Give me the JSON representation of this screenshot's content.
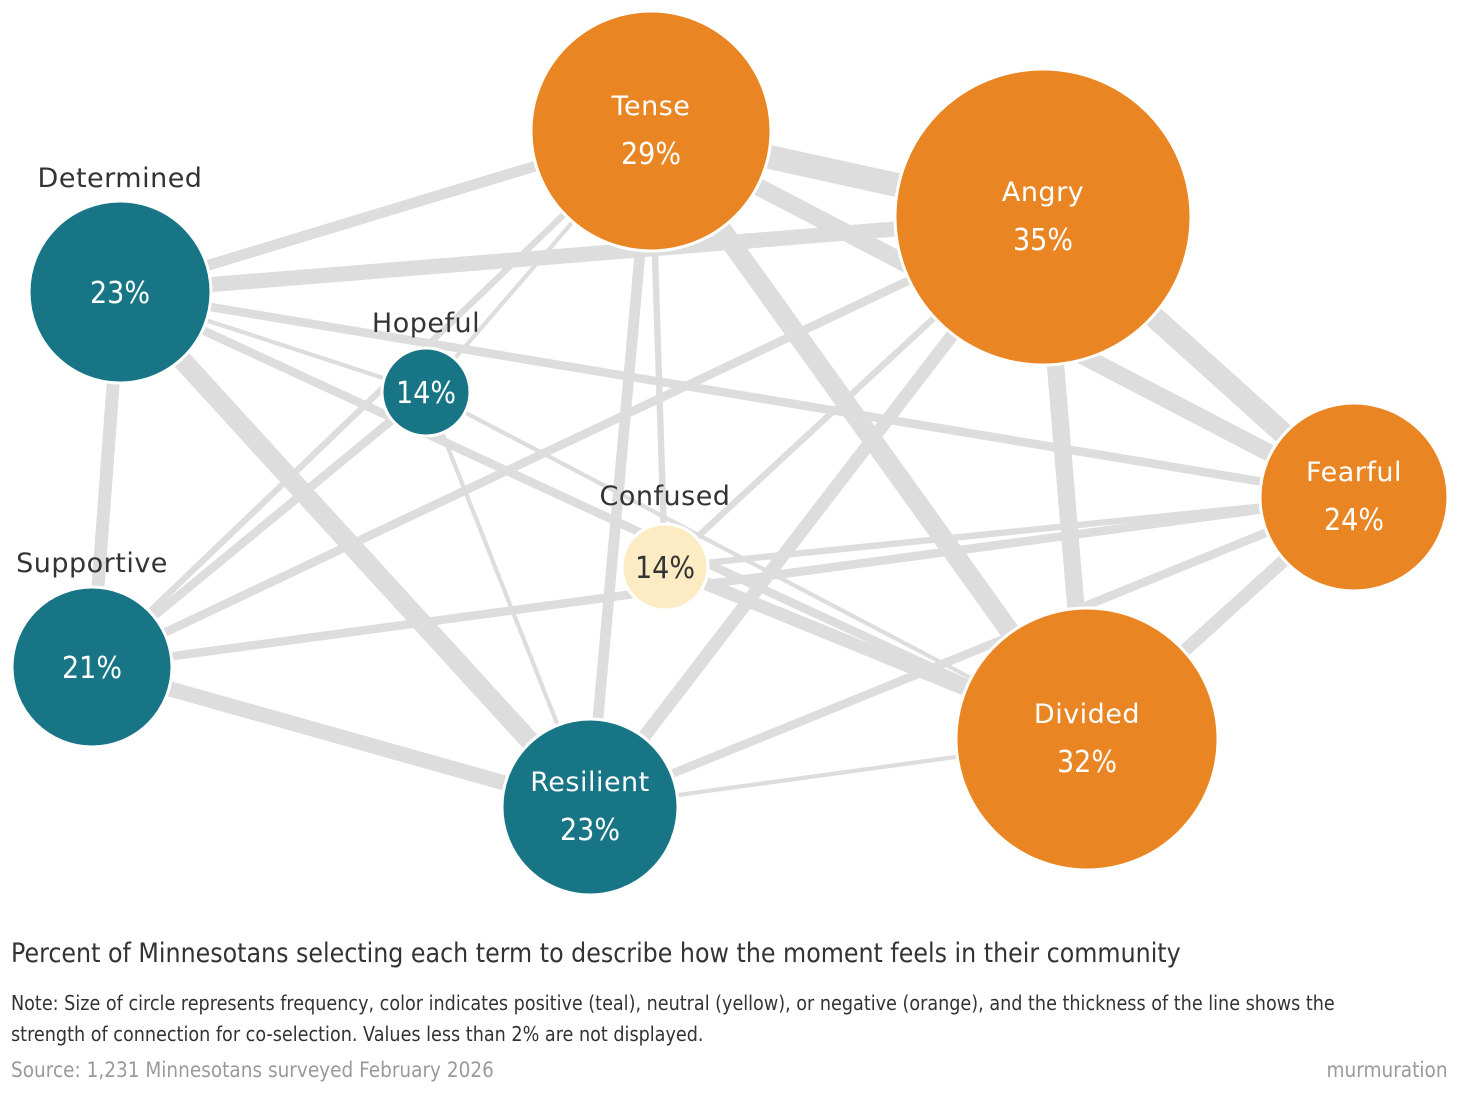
{
  "chart_data": {
    "type": "network",
    "nodes": [
      {
        "id": "tense",
        "label": "Tense",
        "value": "29%",
        "sentiment": "negative"
      },
      {
        "id": "angry",
        "label": "Angry",
        "value": "35%",
        "sentiment": "negative"
      },
      {
        "id": "determined",
        "label": "Determined",
        "value": "23%",
        "sentiment": "positive"
      },
      {
        "id": "hopeful",
        "label": "Hopeful",
        "value": "14%",
        "sentiment": "positive"
      },
      {
        "id": "confused",
        "label": "Confused",
        "value": "14%",
        "sentiment": "neutral"
      },
      {
        "id": "fearful",
        "label": "Fearful",
        "value": "24%",
        "sentiment": "negative"
      },
      {
        "id": "supportive",
        "label": "Supportive",
        "value": "21%",
        "sentiment": "positive"
      },
      {
        "id": "resilient",
        "label": "Resilient",
        "value": "23%",
        "sentiment": "positive"
      },
      {
        "id": "divided",
        "label": "Divided",
        "value": "32%",
        "sentiment": "negative"
      }
    ],
    "edges": [
      {
        "source": "tense",
        "target": "angry",
        "strength": 10
      },
      {
        "source": "angry",
        "target": "fearful",
        "strength": 9
      },
      {
        "source": "tense",
        "target": "divided",
        "strength": 8
      },
      {
        "source": "determined",
        "target": "resilient",
        "strength": 8
      },
      {
        "source": "angry",
        "target": "divided",
        "strength": 7
      },
      {
        "source": "tense",
        "target": "fearful",
        "strength": 7
      },
      {
        "source": "determined",
        "target": "angry",
        "strength": 6
      },
      {
        "source": "determined",
        "target": "tense",
        "strength": 4
      },
      {
        "source": "determined",
        "target": "supportive",
        "strength": 5
      },
      {
        "source": "determined",
        "target": "fearful",
        "strength": 3
      },
      {
        "source": "determined",
        "target": "divided",
        "strength": 3
      },
      {
        "source": "determined",
        "target": "hopeful",
        "strength": 1
      },
      {
        "source": "supportive",
        "target": "resilient",
        "strength": 6
      },
      {
        "source": "supportive",
        "target": "angry",
        "strength": 3
      },
      {
        "source": "supportive",
        "target": "hopeful",
        "strength": 3
      },
      {
        "source": "supportive",
        "target": "tense",
        "strength": 2
      },
      {
        "source": "supportive",
        "target": "fearful",
        "strength": 3
      },
      {
        "source": "resilient",
        "target": "angry",
        "strength": 5
      },
      {
        "source": "resilient",
        "target": "tense",
        "strength": 4
      },
      {
        "source": "resilient",
        "target": "fearful",
        "strength": 3
      },
      {
        "source": "resilient",
        "target": "divided",
        "strength": 1
      },
      {
        "source": "resilient",
        "target": "hopeful",
        "strength": 1
      },
      {
        "source": "confused",
        "target": "divided",
        "strength": 5
      },
      {
        "source": "confused",
        "target": "tense",
        "strength": 2
      },
      {
        "source": "confused",
        "target": "angry",
        "strength": 2
      },
      {
        "source": "confused",
        "target": "fearful",
        "strength": 2
      },
      {
        "source": "fearful",
        "target": "divided",
        "strength": 5
      },
      {
        "source": "tense",
        "target": "hopeful",
        "strength": 1
      },
      {
        "source": "hopeful",
        "target": "divided",
        "strength": 1
      },
      {
        "source": "angry",
        "target": "resilient",
        "strength": 2
      }
    ],
    "legend": {
      "positive": "teal",
      "neutral": "yellow",
      "negative": "orange"
    }
  },
  "colors": {
    "positive": "#177585",
    "neutral": "#fdebc4",
    "negative": "#e98623",
    "edge": "#dddddd"
  },
  "caption": "Percent of Minnesotans selecting each term to describe how the moment feels in their community",
  "note": "Note: Size of circle represents frequency, color indicates positive (teal), neutral (yellow), or negative (orange), and the thickness of the line shows the strength of connection for co-selection. Values less than 2% are not displayed.",
  "source": "Source: 1,231 Minnesotans surveyed February 2026",
  "brand": "murmuration"
}
